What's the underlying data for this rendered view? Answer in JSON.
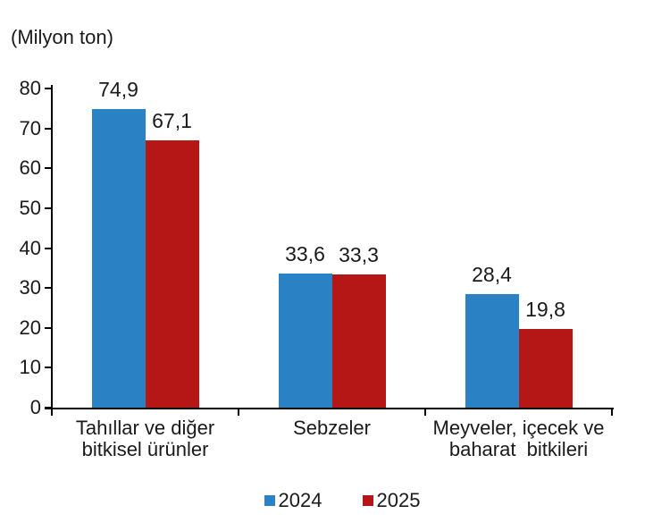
{
  "title": "(Milyon ton)",
  "colors": {
    "series_2024": "#2A81C4",
    "series_2025": "#B51717",
    "axis": "#000000",
    "text": "#1A1A1A",
    "background": "#FFFFFF"
  },
  "chart_data": {
    "type": "bar",
    "title": "(Milyon ton)",
    "grid": false,
    "legend_position": "bottom",
    "categories": [
      {
        "label_lines": [
          "Tahıllar ve diğer",
          "bitkisel ürünler"
        ]
      },
      {
        "label_lines": [
          "Sebzeler"
        ]
      },
      {
        "label_lines": [
          "Meyveler, içecek ve",
          "baharat  bitkileri"
        ]
      }
    ],
    "series": [
      {
        "name": "2024",
        "color": "#2A81C4",
        "values": [
          74.9,
          33.6,
          28.4
        ],
        "labels": [
          "74,9",
          "33,6",
          "28,4"
        ]
      },
      {
        "name": "2025",
        "color": "#B51717",
        "values": [
          67.1,
          33.3,
          19.8
        ],
        "labels": [
          "67,1",
          "33,3",
          "19,8"
        ]
      }
    ],
    "y_axis": {
      "min": 0,
      "max": 80,
      "step": 10,
      "tick_labels": [
        "0",
        "10",
        "20",
        "30",
        "40",
        "50",
        "60",
        "70",
        "80"
      ]
    },
    "legend": [
      {
        "label": "2024",
        "color": "#2A81C4"
      },
      {
        "label": "2025",
        "color": "#B51717"
      }
    ]
  }
}
